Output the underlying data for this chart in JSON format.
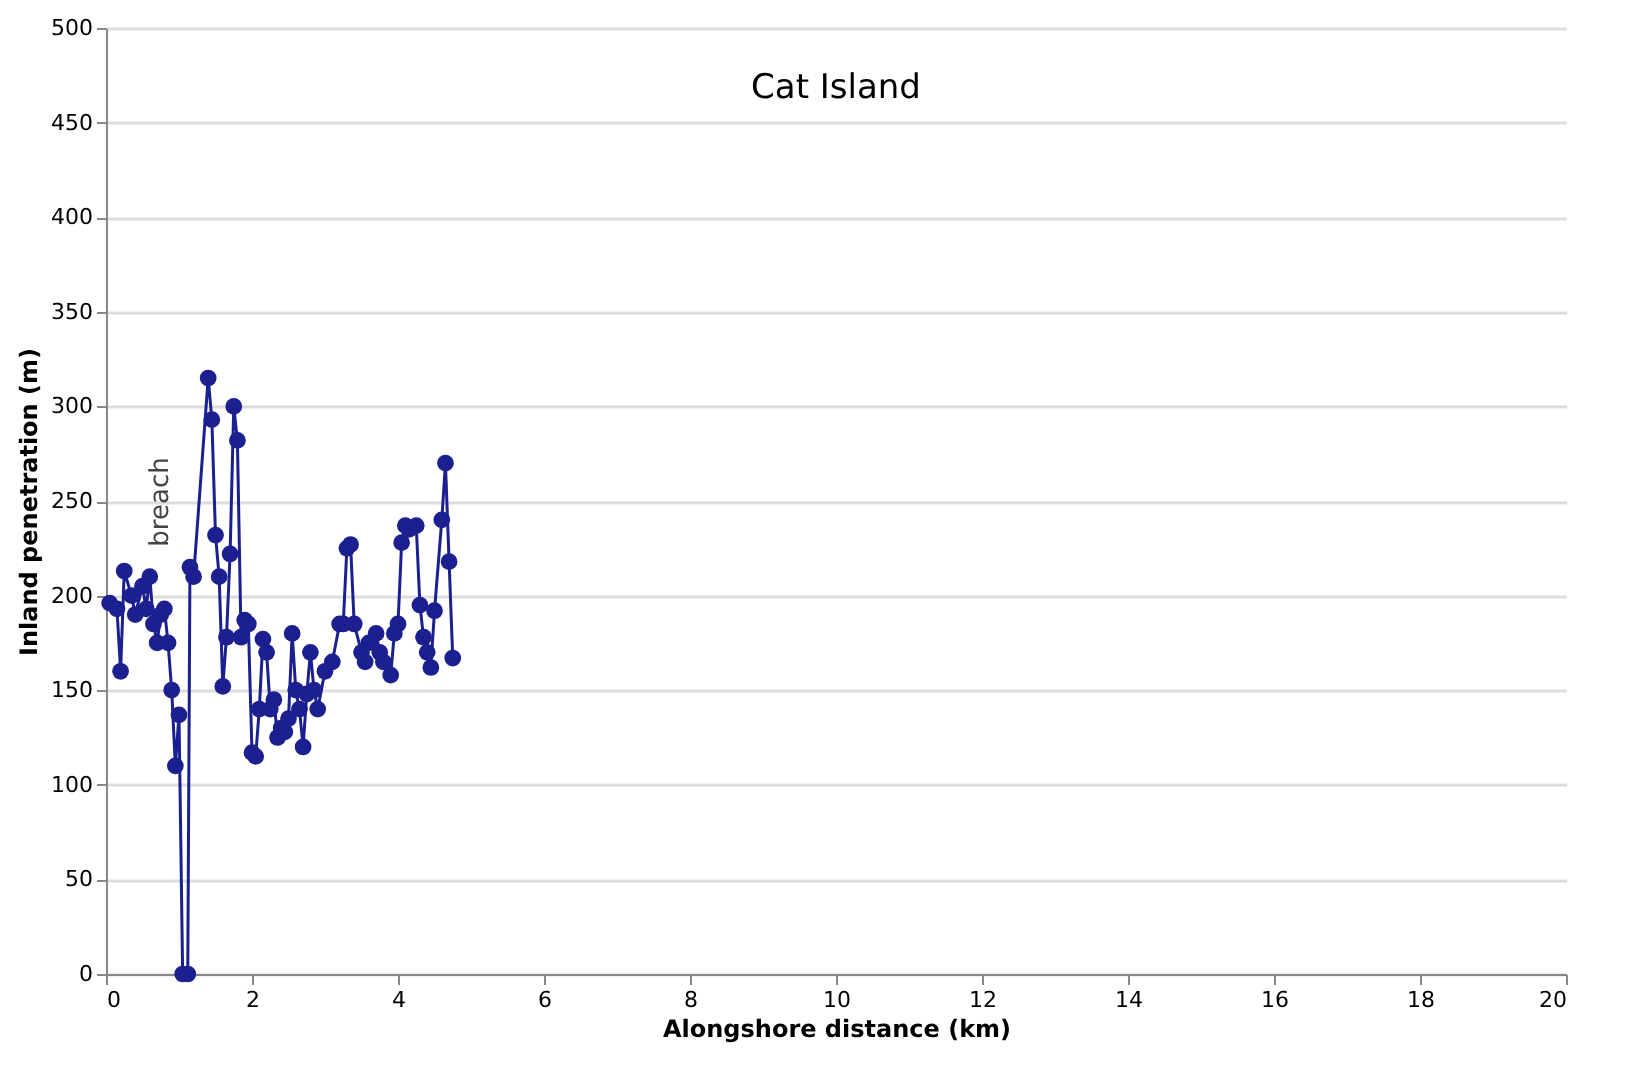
{
  "chart_data": {
    "type": "line",
    "title": "Cat Island",
    "xlabel": "Alongshore distance (km)",
    "ylabel": "Inland penetration (m)",
    "x": [
      0.05,
      0.15,
      0.2,
      0.25,
      0.35,
      0.4,
      0.5,
      0.55,
      0.6,
      0.65,
      0.7,
      0.75,
      0.8,
      0.85,
      0.9,
      0.95,
      1.0,
      1.05,
      1.12,
      1.15,
      1.2,
      1.4,
      1.45,
      1.5,
      1.55,
      1.6,
      1.65,
      1.7,
      1.75,
      1.8,
      1.85,
      1.9,
      1.95,
      2.0,
      2.05,
      2.1,
      2.15,
      2.2,
      2.25,
      2.3,
      2.35,
      2.4,
      2.45,
      2.5,
      2.55,
      2.6,
      2.65,
      2.7,
      2.75,
      2.8,
      2.85,
      2.9,
      3.0,
      3.1,
      3.2,
      3.25,
      3.3,
      3.35,
      3.4,
      3.5,
      3.55,
      3.6,
      3.7,
      3.75,
      3.8,
      3.9,
      3.95,
      4.0,
      4.05,
      4.1,
      4.15,
      4.25,
      4.3,
      4.35,
      4.4,
      4.45,
      4.5,
      4.6,
      4.65,
      4.7,
      4.75
    ],
    "series": [
      {
        "color": "#1c1f8f",
        "values": [
          196,
          193,
          160,
          213,
          200,
          190,
          205,
          193,
          210,
          185,
          175,
          190,
          193,
          175,
          150,
          110,
          137,
          0,
          0,
          215,
          210,
          315,
          293,
          232,
          210,
          152,
          178,
          222,
          300,
          282,
          178,
          187,
          185,
          117,
          115,
          140,
          177,
          170,
          140,
          145,
          125,
          130,
          128,
          135,
          180,
          150,
          140,
          120,
          148,
          170,
          150,
          140,
          160,
          165,
          185,
          185,
          225,
          227,
          185,
          170,
          165,
          175,
          180,
          170,
          165,
          158,
          180,
          185,
          228,
          237,
          235,
          237,
          195,
          178,
          170,
          162,
          192,
          240,
          270,
          218,
          167
        ]
      }
    ],
    "xlim": [
      0,
      20
    ],
    "xticks": [
      0,
      2,
      4,
      6,
      8,
      10,
      12,
      14,
      16,
      18,
      20
    ],
    "ylim": [
      0,
      500
    ],
    "yticks": [
      0,
      50,
      100,
      150,
      200,
      250,
      300,
      350,
      400,
      450,
      500
    ],
    "grid": "y",
    "marker": "circle",
    "line_style": "solid",
    "annotations": [
      "breach"
    ]
  }
}
